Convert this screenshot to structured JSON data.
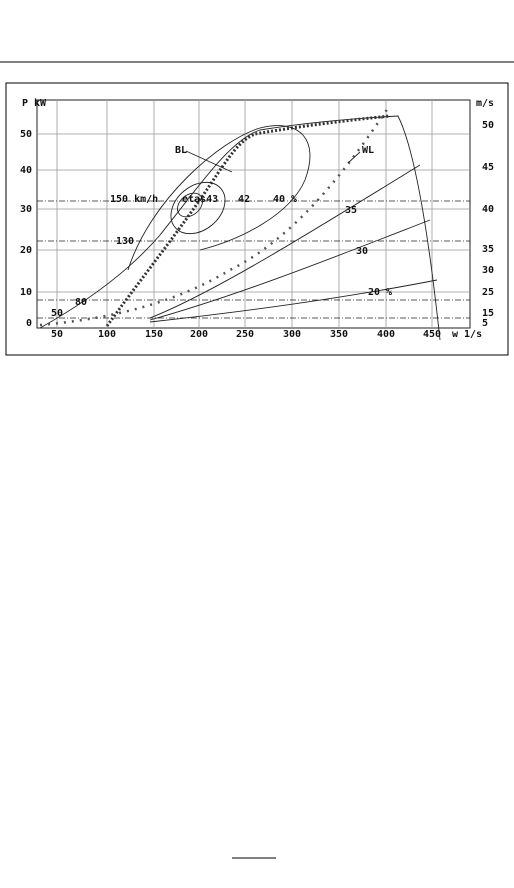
{
  "figure": {
    "y_axis_label": "P kW",
    "y2_axis_label": "m/s",
    "x_axis_label": "w 1/s",
    "y_ticks": [
      "0",
      "10",
      "20",
      "30",
      "40",
      "50"
    ],
    "y2_ticks": [
      "50",
      "45",
      "40",
      "35",
      "30",
      "25",
      "15",
      "5"
    ],
    "x_ticks": [
      "50",
      "100",
      "150",
      "200",
      "250",
      "300",
      "350",
      "400",
      "450"
    ],
    "annotations": [
      "BL",
      "WL",
      "150 km/h",
      "130",
      "80",
      "50",
      "etas43",
      "42",
      "40 %",
      "35",
      "30",
      "20 %"
    ]
  }
}
